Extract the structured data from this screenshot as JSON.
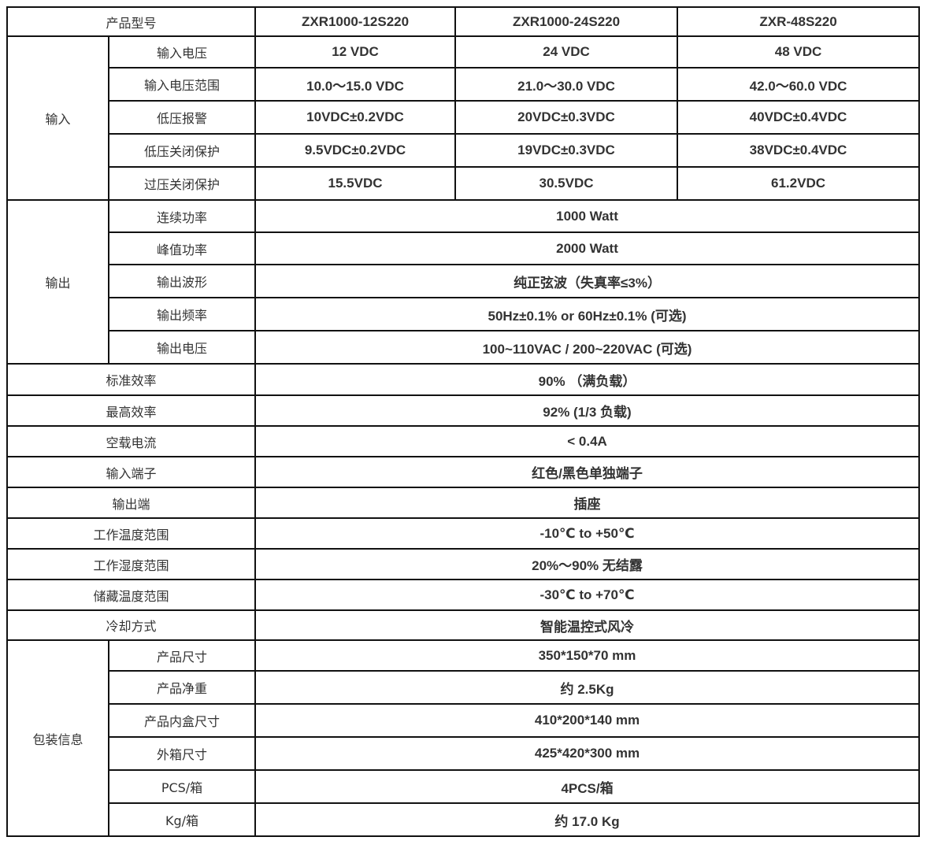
{
  "header": {
    "label": "产品型号",
    "models": [
      "ZXR1000-12S220",
      "ZXR1000-24S220",
      "ZXR-48S220"
    ]
  },
  "input": {
    "group": "输入",
    "rows": [
      {
        "label": "输入电压",
        "values": [
          "12 VDC",
          "24 VDC",
          "48 VDC"
        ]
      },
      {
        "label": "输入电压范围",
        "values": [
          "10.0～15.0 VDC",
          "21.0～30.0 VDC",
          "42.0～60.0 VDC"
        ]
      },
      {
        "label": "低压报警",
        "values": [
          "10VDC±0.2VDC",
          "20VDC±0.3VDC",
          "40VDC±0.4VDC"
        ]
      },
      {
        "label": "低压关闭保护",
        "values": [
          "9.5VDC±0.2VDC",
          "19VDC±0.3VDC",
          "38VDC±0.4VDC"
        ]
      },
      {
        "label": "过压关闭保护",
        "values": [
          "15.5VDC",
          "30.5VDC",
          "61.2VDC"
        ]
      }
    ]
  },
  "output": {
    "group": "输出",
    "rows": [
      {
        "label": "连续功率",
        "value": "1000 Watt"
      },
      {
        "label": "峰值功率",
        "value": "2000 Watt"
      },
      {
        "label": "输出波形",
        "value": "纯正弦波（失真率≤3%）"
      },
      {
        "label": "输出频率",
        "value": "50Hz±0.1% or 60Hz±0.1% (可选)"
      },
      {
        "label": "输出电压",
        "value": "100~110VAC / 200~220VAC (可选)"
      }
    ]
  },
  "general": [
    {
      "label": "标准效率",
      "value": "90% （满负载）"
    },
    {
      "label": "最高效率",
      "value": "92% (1/3 负载)"
    },
    {
      "label": "空载电流",
      "value": "< 0.4A"
    },
    {
      "label": "输入端子",
      "value": "红色/黑色单独端子"
    },
    {
      "label": "输出端",
      "value": "插座"
    },
    {
      "label": "工作温度范围",
      "value": "-10℃ to +50℃"
    },
    {
      "label": "工作湿度范围",
      "value": "20%～90% 无结露"
    },
    {
      "label": "储藏温度范围",
      "value": "-30℃ to +70℃"
    },
    {
      "label": "冷却方式",
      "value": "智能温控式风冷"
    }
  ],
  "packaging": {
    "group": "包装信息",
    "rows": [
      {
        "label": "产品尺寸",
        "value": "350*150*70 mm"
      },
      {
        "label": "产品净重",
        "value": "约 2.5Kg"
      },
      {
        "label": "产品内盒尺寸",
        "value": "410*200*140 mm"
      },
      {
        "label": "外箱尺寸",
        "value": "425*420*300 mm"
      },
      {
        "label": "PCS/箱",
        "value": "4PCS/箱"
      },
      {
        "label": "Kg/箱",
        "value": "约 17.0 Kg"
      }
    ]
  }
}
